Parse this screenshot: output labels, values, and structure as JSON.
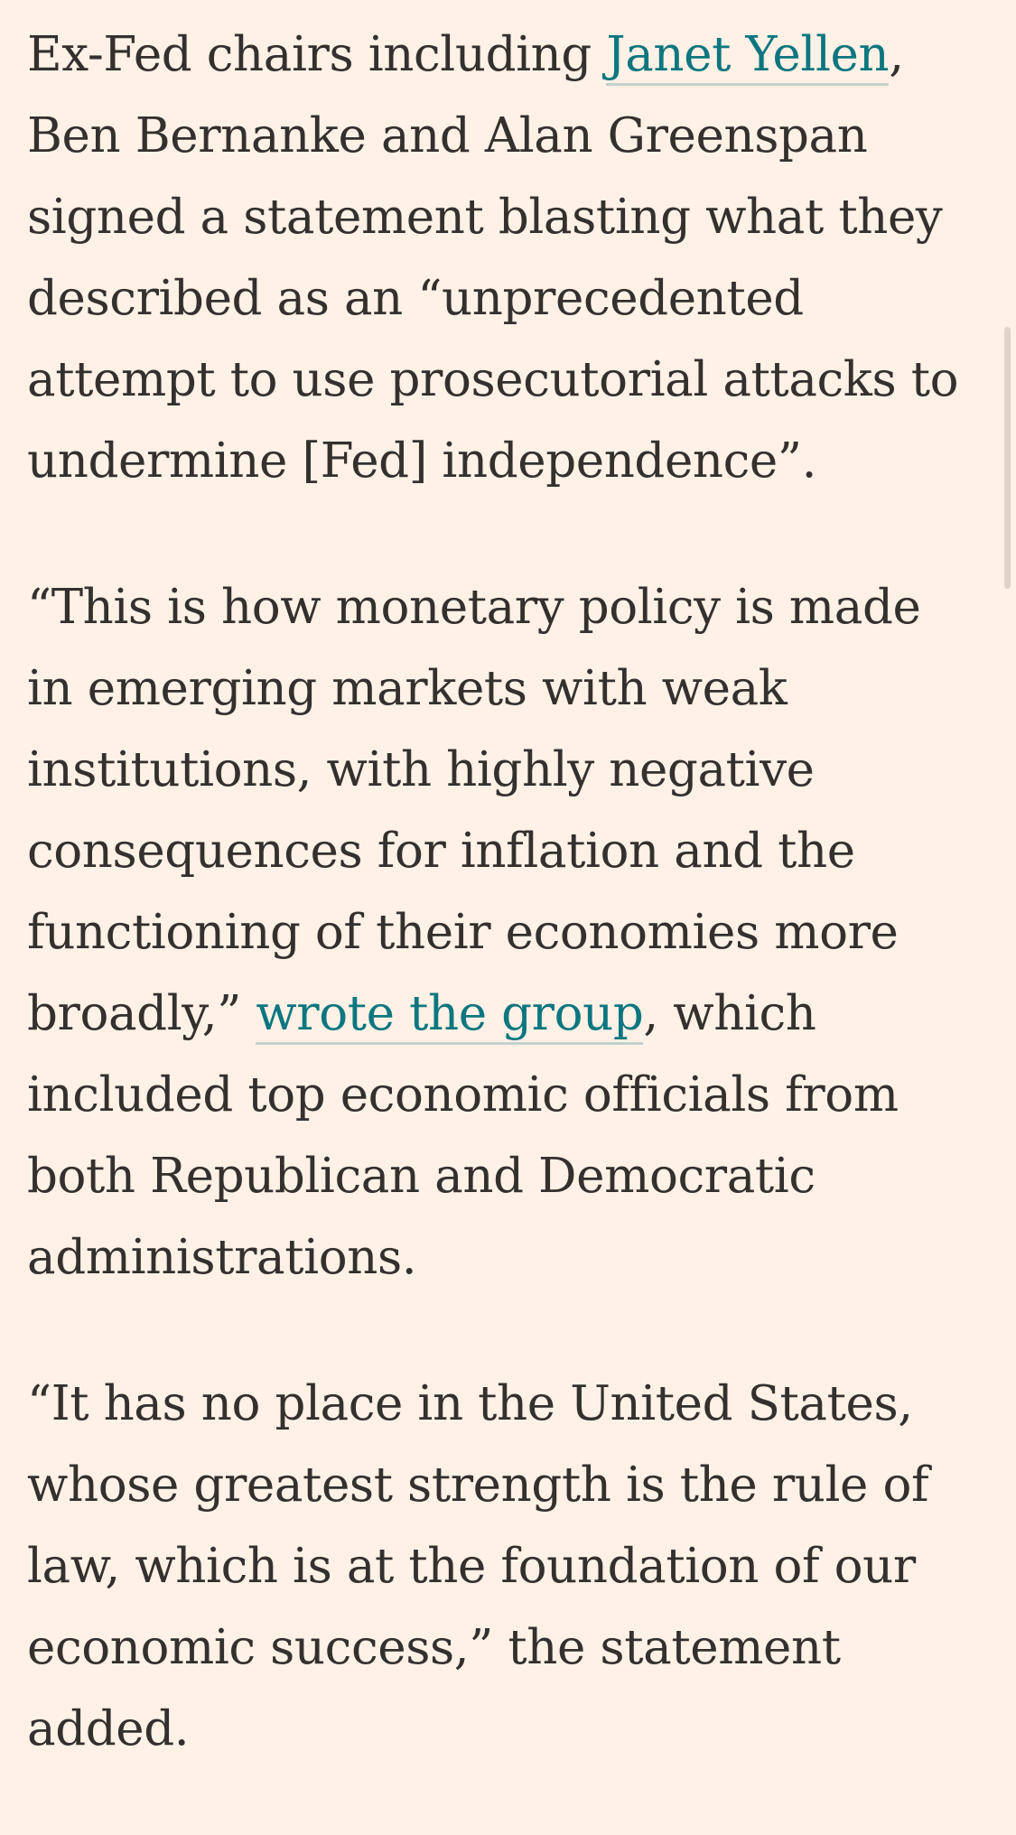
{
  "article": {
    "paragraphs": [
      {
        "segments": [
          {
            "text": "Ex-Fed chairs including "
          },
          {
            "text": "Janet Yellen",
            "link": true
          },
          {
            "text": ", Ben Bernanke and Alan Greenspan signed a statement blasting what they described as an “unprecedented attempt to use prosecutorial attacks to undermine [Fed] independence”."
          }
        ]
      },
      {
        "segments": [
          {
            "text": "“This is how monetary policy is made in emerging markets with weak institutions, with highly negative consequences for inflation and the functioning of their economies more broadly,” "
          },
          {
            "text": "wrote the group",
            "link": true
          },
          {
            "text": ", which included top economic officials from both Republican and Democratic administrations."
          }
        ]
      },
      {
        "segments": [
          {
            "text": "“It has no place in the United States, whose greatest strength is the rule of law, which is at the foundation of our economic success,” the statement added."
          }
        ]
      }
    ]
  },
  "colors": {
    "background": "#FFF1E5",
    "text": "#33302E",
    "link": "#0D7680"
  }
}
